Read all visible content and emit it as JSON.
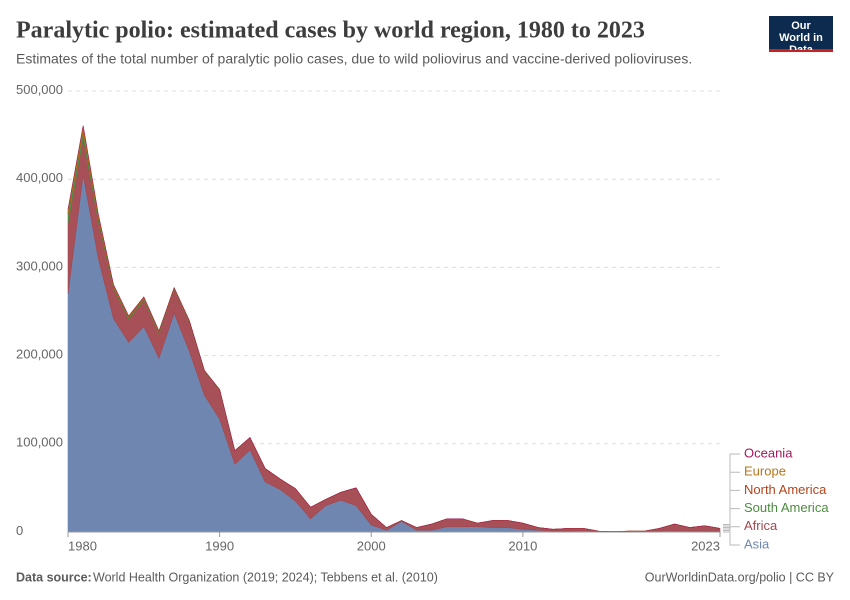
{
  "chart_data": {
    "type": "stacked_area",
    "title": "Paralytic polio: estimated cases by world region, 1980 to 2023",
    "subtitle": "Estimates of the total number of paralytic polio cases, due to wild poliovirus and vaccine-derived polioviruses.",
    "logo": "Our World in Data",
    "source_label": "Data source:",
    "source": "World Health Organization (2019; 2024); Tebbens et al. (2010)",
    "footer_right": "OurWorldinData.org/polio | CC BY",
    "x": [
      1980,
      1981,
      1982,
      1983,
      1984,
      1985,
      1986,
      1987,
      1988,
      1989,
      1990,
      1991,
      1992,
      1993,
      1994,
      1995,
      1996,
      1997,
      1998,
      1999,
      2000,
      2001,
      2002,
      2003,
      2004,
      2005,
      2006,
      2007,
      2008,
      2009,
      2010,
      2011,
      2012,
      2013,
      2014,
      2015,
      2016,
      2017,
      2018,
      2019,
      2020,
      2021,
      2022,
      2023
    ],
    "xlim": [
      1980,
      2023
    ],
    "xticks": [
      1980,
      1990,
      2000,
      2010,
      2023
    ],
    "ylim": [
      0,
      500000
    ],
    "yticks": [
      0,
      {
        "value": 100000,
        "label": "100,000"
      },
      {
        "value": 200000,
        "label": "200,000"
      },
      {
        "value": 300000,
        "label": "300,000"
      },
      {
        "value": 400000,
        "label": "400,000"
      },
      {
        "value": 500000,
        "label": "500,000"
      }
    ],
    "grid": true,
    "series": [
      {
        "name": "Asia",
        "color": "#6f87b0",
        "values": [
          270000,
          405000,
          310000,
          242000,
          215000,
          233000,
          197000,
          248000,
          205000,
          155000,
          128000,
          77000,
          93000,
          57000,
          48000,
          35000,
          15000,
          30000,
          36000,
          30000,
          8000,
          2000,
          12000,
          2000,
          2000,
          6000,
          6000,
          6000,
          5000,
          5000,
          3000,
          2000,
          1000,
          1000,
          1500,
          500,
          200,
          500,
          500,
          1000,
          1500,
          1000,
          1000,
          500
        ]
      },
      {
        "name": "Africa",
        "color": "#a2474f",
        "values": [
          80000,
          41000,
          42000,
          34000,
          26000,
          30000,
          28000,
          27000,
          33000,
          27000,
          33000,
          15000,
          14000,
          15000,
          12000,
          14000,
          13000,
          7000,
          9000,
          20000,
          12000,
          3000,
          1000,
          3000,
          7000,
          9000,
          9000,
          4000,
          8000,
          8000,
          7000,
          3000,
          2000,
          3000,
          2500,
          500,
          300,
          500,
          500,
          3000,
          7500,
          4000,
          6000,
          3500
        ]
      },
      {
        "name": "South America",
        "color": "#4c8c3f",
        "values": [
          10000,
          8000,
          4000,
          2000,
          2000,
          2000,
          1500,
          1000,
          1000,
          500,
          300,
          100,
          0,
          0,
          0,
          0,
          0,
          0,
          0,
          0,
          0,
          0,
          0,
          0,
          0,
          0,
          0,
          0,
          0,
          0,
          0,
          0,
          0,
          0,
          0,
          0,
          0,
          0,
          0,
          0,
          0,
          0,
          0,
          0
        ]
      },
      {
        "name": "North America",
        "color": "#b3441b",
        "values": [
          1500,
          1500,
          1000,
          800,
          800,
          500,
          500,
          400,
          300,
          200,
          100,
          0,
          0,
          0,
          0,
          0,
          0,
          0,
          0,
          0,
          0,
          0,
          0,
          0,
          0,
          0,
          0,
          0,
          0,
          0,
          0,
          0,
          0,
          0,
          0,
          0,
          0,
          0,
          0,
          0,
          0,
          0,
          0,
          0
        ]
      },
      {
        "name": "Europe",
        "color": "#b8751a",
        "values": [
          4000,
          5000,
          3000,
          1500,
          1000,
          1000,
          800,
          500,
          500,
          300,
          200,
          100,
          0,
          0,
          0,
          0,
          0,
          0,
          0,
          0,
          0,
          0,
          0,
          0,
          0,
          0,
          0,
          0,
          0,
          0,
          0,
          0,
          0,
          0,
          0,
          0,
          0,
          0,
          0,
          0,
          0,
          0,
          0,
          0
        ]
      },
      {
        "name": "Oceania",
        "color": "#a2185a",
        "values": [
          100,
          100,
          100,
          100,
          0,
          0,
          0,
          0,
          0,
          0,
          0,
          0,
          0,
          0,
          0,
          0,
          0,
          0,
          0,
          0,
          0,
          0,
          0,
          0,
          0,
          0,
          0,
          0,
          0,
          0,
          0,
          0,
          0,
          0,
          0,
          0,
          0,
          0,
          0,
          0,
          0,
          0,
          0,
          0
        ]
      }
    ]
  }
}
